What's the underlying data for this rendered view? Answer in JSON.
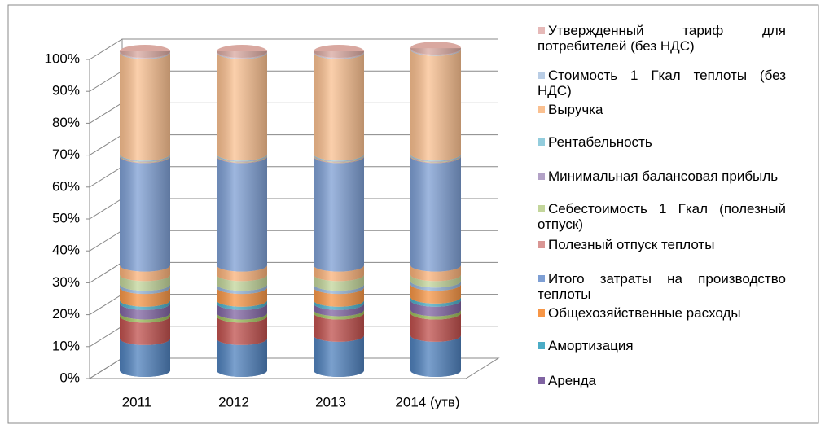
{
  "chart_data": {
    "type": "stacked-cylinder",
    "categories": [
      "2011",
      "2012",
      "2013",
      "2014 (утв)"
    ],
    "ylim": [
      0,
      100
    ],
    "yticks": [
      {
        "value": 0,
        "label": "0%"
      },
      {
        "value": 10,
        "label": "10%"
      },
      {
        "value": 20,
        "label": "20%"
      },
      {
        "value": 30,
        "label": "30%"
      },
      {
        "value": 40,
        "label": "40%"
      },
      {
        "value": 50,
        "label": "50%"
      },
      {
        "value": 60,
        "label": "60%"
      },
      {
        "value": 70,
        "label": "70%"
      },
      {
        "value": 80,
        "label": "80%"
      },
      {
        "value": 90,
        "label": "90%"
      },
      {
        "value": 100,
        "label": "100%"
      }
    ],
    "grid": true,
    "series": [
      {
        "color": "#4f81bd",
        "values": [
          10,
          10,
          11,
          11
        ]
      },
      {
        "color": "#c0504d",
        "values": [
          7,
          7,
          7,
          7
        ]
      },
      {
        "color": "#9bbb59",
        "values": [
          1,
          1,
          1,
          1
        ]
      },
      {
        "name": "Аренда",
        "color": "#8064a2",
        "values": [
          3,
          3,
          2,
          3
        ]
      },
      {
        "name": "Амортизация",
        "color": "#4bacc6",
        "values": [
          1,
          1,
          1,
          1
        ]
      },
      {
        "name": "Общехозяйственные расходы",
        "color": "#f79646",
        "values": [
          4,
          4,
          4,
          4
        ]
      },
      {
        "color": "#95b3d7",
        "values": [
          1,
          1,
          1,
          1
        ]
      },
      {
        "color": "#c3d69b",
        "values": [
          3,
          3,
          3,
          2
        ]
      },
      {
        "color": "#fab27a",
        "values": [
          3,
          3,
          3,
          3
        ]
      },
      {
        "name": "Итого затраты на производство теплоты",
        "color": "#7e9fd4",
        "values": [
          34,
          34,
          34,
          34
        ]
      },
      {
        "name": "Полезный отпуск теплоты",
        "color": "#d99694",
        "values": [
          0.2,
          0.2,
          0.2,
          0.2
        ]
      },
      {
        "name": "Себестоимость 1 Гкал (полезный отпуск)",
        "color": "#c3d69b",
        "values": [
          0.2,
          0.2,
          0.2,
          0.2
        ]
      },
      {
        "name": "Минимальная балансовая прибыль",
        "color": "#b3a2c7",
        "values": [
          0.2,
          0.2,
          0.2,
          0.2
        ]
      },
      {
        "name": "Рентабельность",
        "color": "#93cddd",
        "values": [
          0.2,
          0.2,
          0.2,
          0.2
        ]
      },
      {
        "name": "Выручка",
        "color": "#fac090",
        "values": [
          31.8,
          31.8,
          31.8,
          32.8
        ]
      },
      {
        "name": "Стоимость 1 Гкал теплоты (без НДС)",
        "color": "#b9cde5",
        "values": [
          0.2,
          0.2,
          0.2,
          0.2
        ]
      },
      {
        "name": "Утвержденный тариф для потребителей (без НДС)",
        "color": "#e6b9b8",
        "values": [
          0.2,
          0.2,
          0.2,
          0.2
        ]
      }
    ]
  }
}
